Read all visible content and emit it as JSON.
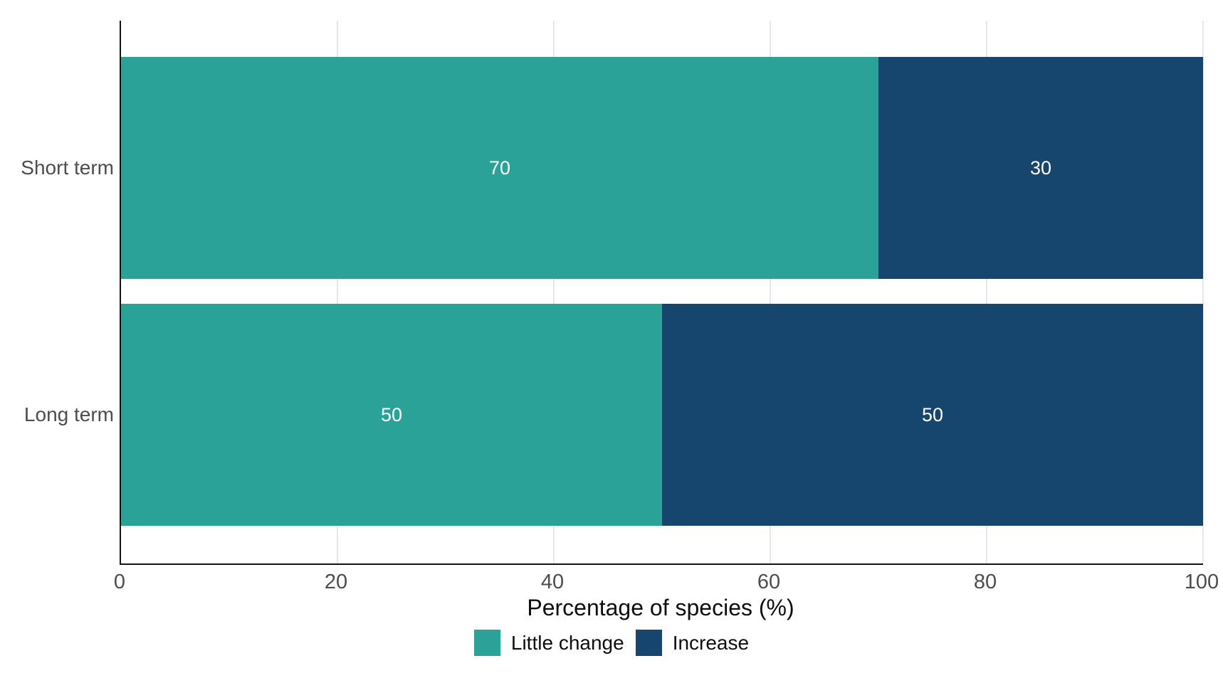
{
  "chart_data": {
    "type": "bar",
    "orientation": "horizontal",
    "stacked": true,
    "title": "",
    "xlabel": "Percentage of species (%)",
    "ylabel": "",
    "categories": [
      "Short term",
      "Long term"
    ],
    "series": [
      {
        "name": "Little change",
        "color": "#2aa298",
        "values": [
          70,
          50
        ]
      },
      {
        "name": "Increase",
        "color": "#16466e",
        "values": [
          30,
          50
        ]
      }
    ],
    "bar_value_labels": [
      [
        "70",
        "30"
      ],
      [
        "50",
        "50"
      ]
    ],
    "xlim": [
      0,
      100
    ],
    "xticks": [
      0,
      20,
      40,
      60,
      80,
      100
    ],
    "grid": "vertical gridlines at 20, 40, 60, 80, 100",
    "gridline_color": "#e7e7e7",
    "legend_position": "bottom-center",
    "value_label_color": "#ffffff",
    "tick_label_color": "#4d4d4d"
  }
}
